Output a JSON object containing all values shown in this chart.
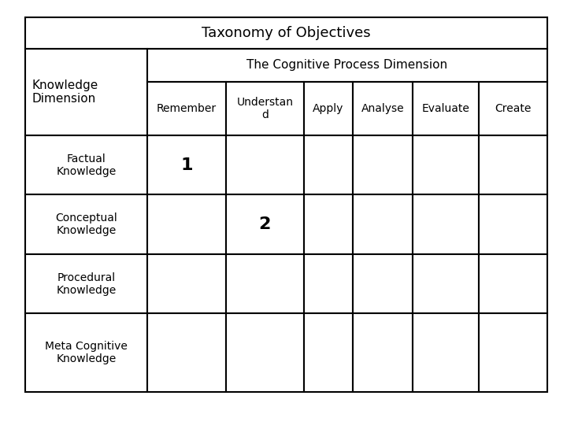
{
  "title": "Taxonomy of Objectives",
  "col_header_main": "The Cognitive Process Dimension",
  "col_header_sub": [
    "Remember",
    "Understan\nd",
    "Apply",
    "Analyse",
    "Evaluate",
    "Create"
  ],
  "row_labels_kd": "Knowledge\nDimension",
  "data_row_labels": [
    "Factual\nKnowledge",
    "Conceptual\nKnowledge",
    "Procedural\nKnowledge",
    "Meta Cognitive\nKnowledge"
  ],
  "number_1_row": 0,
  "number_1_col": 1,
  "number_2_row": 1,
  "number_2_col": 2,
  "background_color": "#ffffff",
  "border_color": "#000000",
  "title_fontsize": 13,
  "header_fontsize": 11,
  "cell_fontsize": 10,
  "number_fontsize": 16,
  "fig_width": 7.2,
  "fig_height": 5.4,
  "dpi": 100
}
